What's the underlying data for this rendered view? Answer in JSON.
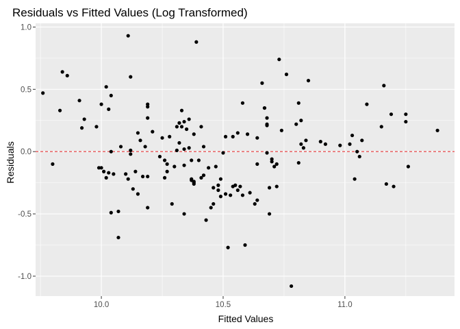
{
  "chart_data": {
    "type": "scatter",
    "title": "Residuals vs Fitted Values (Log Transformed)",
    "xlabel": "Fitted Values",
    "ylabel": "Residuals",
    "xlim": [
      9.73,
      11.45
    ],
    "ylim": [
      -1.16,
      1.03
    ],
    "x_ticks": [
      10.0,
      10.5,
      11.0
    ],
    "x_tick_labels": [
      "10.0",
      "10.5",
      "11.0"
    ],
    "y_ticks": [
      -1.0,
      -0.5,
      0.0,
      0.5,
      1.0
    ],
    "y_tick_labels": [
      "-1.0",
      "-0.5",
      "0.0",
      "0.5",
      "1.0"
    ],
    "grid": true,
    "reference_line": {
      "y": 0.0,
      "style": "dashed",
      "color": "#e31a1c"
    },
    "colors": {
      "panel": "#ebebeb",
      "grid": "#ffffff",
      "points": "#000000",
      "tick": "#333333"
    },
    "points": [
      {
        "x": 9.76,
        "y": 0.47
      },
      {
        "x": 9.8,
        "y": -0.1
      },
      {
        "x": 9.83,
        "y": 0.33
      },
      {
        "x": 9.84,
        "y": 0.64
      },
      {
        "x": 9.86,
        "y": 0.61
      },
      {
        "x": 9.91,
        "y": 0.41
      },
      {
        "x": 9.92,
        "y": 0.19
      },
      {
        "x": 9.93,
        "y": 0.26
      },
      {
        "x": 9.98,
        "y": 0.2
      },
      {
        "x": 9.99,
        "y": -0.13
      },
      {
        "x": 10.0,
        "y": -0.13
      },
      {
        "x": 10.0,
        "y": 0.38
      },
      {
        "x": 10.01,
        "y": -0.16
      },
      {
        "x": 10.02,
        "y": -0.21
      },
      {
        "x": 10.02,
        "y": 0.52
      },
      {
        "x": 10.03,
        "y": 0.34
      },
      {
        "x": 10.03,
        "y": -0.17
      },
      {
        "x": 10.04,
        "y": 0.0
      },
      {
        "x": 10.04,
        "y": 0.45
      },
      {
        "x": 10.04,
        "y": -0.49
      },
      {
        "x": 10.05,
        "y": -0.18
      },
      {
        "x": 10.07,
        "y": -0.48
      },
      {
        "x": 10.07,
        "y": -0.69
      },
      {
        "x": 10.08,
        "y": 0.04
      },
      {
        "x": 10.1,
        "y": -0.18
      },
      {
        "x": 10.11,
        "y": -0.22
      },
      {
        "x": 10.11,
        "y": 0.93
      },
      {
        "x": 10.12,
        "y": 0.6
      },
      {
        "x": 10.12,
        "y": -0.02
      },
      {
        "x": 10.12,
        "y": 0.01
      },
      {
        "x": 10.13,
        "y": -0.3
      },
      {
        "x": 10.14,
        "y": -0.16
      },
      {
        "x": 10.15,
        "y": -0.34
      },
      {
        "x": 10.15,
        "y": 0.15
      },
      {
        "x": 10.16,
        "y": 0.09
      },
      {
        "x": 10.17,
        "y": -0.2
      },
      {
        "x": 10.18,
        "y": 0.04
      },
      {
        "x": 10.19,
        "y": 0.38
      },
      {
        "x": 10.19,
        "y": 0.36
      },
      {
        "x": 10.19,
        "y": -0.45
      },
      {
        "x": 10.19,
        "y": -0.2
      },
      {
        "x": 10.19,
        "y": 0.27
      },
      {
        "x": 10.21,
        "y": 0.16
      },
      {
        "x": 10.24,
        "y": -0.04
      },
      {
        "x": 10.25,
        "y": 0.11
      },
      {
        "x": 10.26,
        "y": -0.07
      },
      {
        "x": 10.26,
        "y": -0.21
      },
      {
        "x": 10.27,
        "y": -0.16
      },
      {
        "x": 10.27,
        "y": -0.1
      },
      {
        "x": 10.28,
        "y": 0.12
      },
      {
        "x": 10.29,
        "y": -0.42
      },
      {
        "x": 10.3,
        "y": -0.12
      },
      {
        "x": 10.31,
        "y": 0.2
      },
      {
        "x": 10.31,
        "y": 0.01
      },
      {
        "x": 10.32,
        "y": 0.23
      },
      {
        "x": 10.32,
        "y": 0.07
      },
      {
        "x": 10.33,
        "y": 0.33
      },
      {
        "x": 10.33,
        "y": 0.2
      },
      {
        "x": 10.34,
        "y": 0.02
      },
      {
        "x": 10.34,
        "y": -0.5
      },
      {
        "x": 10.34,
        "y": 0.24
      },
      {
        "x": 10.34,
        "y": -0.11
      },
      {
        "x": 10.35,
        "y": 0.18
      },
      {
        "x": 10.36,
        "y": 0.26
      },
      {
        "x": 10.36,
        "y": 0.03
      },
      {
        "x": 10.37,
        "y": -0.22
      },
      {
        "x": 10.37,
        "y": -0.07
      },
      {
        "x": 10.37,
        "y": -0.23
      },
      {
        "x": 10.38,
        "y": 0.14
      },
      {
        "x": 10.38,
        "y": -0.25
      },
      {
        "x": 10.38,
        "y": -0.26
      },
      {
        "x": 10.38,
        "y": -0.24
      },
      {
        "x": 10.39,
        "y": 0.88
      },
      {
        "x": 10.4,
        "y": -0.07
      },
      {
        "x": 10.41,
        "y": -0.21
      },
      {
        "x": 10.41,
        "y": 0.2
      },
      {
        "x": 10.42,
        "y": -0.19
      },
      {
        "x": 10.42,
        "y": 0.04
      },
      {
        "x": 10.43,
        "y": -0.55
      },
      {
        "x": 10.44,
        "y": -0.13
      },
      {
        "x": 10.45,
        "y": -0.45
      },
      {
        "x": 10.46,
        "y": -0.42
      },
      {
        "x": 10.46,
        "y": -0.29
      },
      {
        "x": 10.47,
        "y": -0.12
      },
      {
        "x": 10.48,
        "y": -0.27
      },
      {
        "x": 10.48,
        "y": -0.31
      },
      {
        "x": 10.49,
        "y": -0.36
      },
      {
        "x": 10.49,
        "y": -0.22
      },
      {
        "x": 10.5,
        "y": -0.01
      },
      {
        "x": 10.51,
        "y": -0.34
      },
      {
        "x": 10.51,
        "y": 0.12
      },
      {
        "x": 10.52,
        "y": -0.77
      },
      {
        "x": 10.53,
        "y": -0.35
      },
      {
        "x": 10.54,
        "y": 0.12
      },
      {
        "x": 10.54,
        "y": -0.28
      },
      {
        "x": 10.55,
        "y": -0.27
      },
      {
        "x": 10.56,
        "y": -0.31
      },
      {
        "x": 10.56,
        "y": 0.15
      },
      {
        "x": 10.57,
        "y": -0.28
      },
      {
        "x": 10.58,
        "y": -0.35
      },
      {
        "x": 10.58,
        "y": 0.39
      },
      {
        "x": 10.59,
        "y": -0.75
      },
      {
        "x": 10.6,
        "y": 0.14
      },
      {
        "x": 10.61,
        "y": -0.33
      },
      {
        "x": 10.63,
        "y": -0.42
      },
      {
        "x": 10.64,
        "y": 0.11
      },
      {
        "x": 10.64,
        "y": -0.1
      },
      {
        "x": 10.64,
        "y": -0.39
      },
      {
        "x": 10.66,
        "y": 0.55
      },
      {
        "x": 10.67,
        "y": 0.35
      },
      {
        "x": 10.67,
        "y": 0.35
      },
      {
        "x": 10.68,
        "y": 0.27
      },
      {
        "x": 10.68,
        "y": -0.01
      },
      {
        "x": 10.68,
        "y": 0.21
      },
      {
        "x": 10.68,
        "y": 0.22
      },
      {
        "x": 10.69,
        "y": -0.5
      },
      {
        "x": 10.69,
        "y": -0.29
      },
      {
        "x": 10.7,
        "y": -0.08
      },
      {
        "x": 10.7,
        "y": -0.06
      },
      {
        "x": 10.71,
        "y": -0.12
      },
      {
        "x": 10.72,
        "y": -0.1
      },
      {
        "x": 10.72,
        "y": -0.28
      },
      {
        "x": 10.73,
        "y": 0.74
      },
      {
        "x": 10.74,
        "y": 0.17
      },
      {
        "x": 10.76,
        "y": 0.62
      },
      {
        "x": 10.78,
        "y": -1.08
      },
      {
        "x": 10.8,
        "y": 0.22
      },
      {
        "x": 10.81,
        "y": -0.09
      },
      {
        "x": 10.81,
        "y": 0.39
      },
      {
        "x": 10.82,
        "y": 0.06
      },
      {
        "x": 10.82,
        "y": 0.25
      },
      {
        "x": 10.83,
        "y": 0.03
      },
      {
        "x": 10.84,
        "y": 0.09
      },
      {
        "x": 10.85,
        "y": 0.57
      },
      {
        "x": 10.9,
        "y": 0.08
      },
      {
        "x": 10.92,
        "y": 0.06
      },
      {
        "x": 10.98,
        "y": 0.05
      },
      {
        "x": 11.02,
        "y": 0.06
      },
      {
        "x": 11.03,
        "y": 0.13
      },
      {
        "x": 11.04,
        "y": -0.22
      },
      {
        "x": 11.05,
        "y": 0.0
      },
      {
        "x": 11.06,
        "y": -0.04
      },
      {
        "x": 11.07,
        "y": 0.09
      },
      {
        "x": 11.09,
        "y": 0.38
      },
      {
        "x": 11.15,
        "y": 0.2
      },
      {
        "x": 11.16,
        "y": 0.53
      },
      {
        "x": 11.17,
        "y": -0.26
      },
      {
        "x": 11.19,
        "y": 0.3
      },
      {
        "x": 11.2,
        "y": -0.28
      },
      {
        "x": 11.25,
        "y": 0.3
      },
      {
        "x": 11.25,
        "y": 0.24
      },
      {
        "x": 11.26,
        "y": -0.12
      },
      {
        "x": 11.38,
        "y": 0.17
      }
    ]
  }
}
